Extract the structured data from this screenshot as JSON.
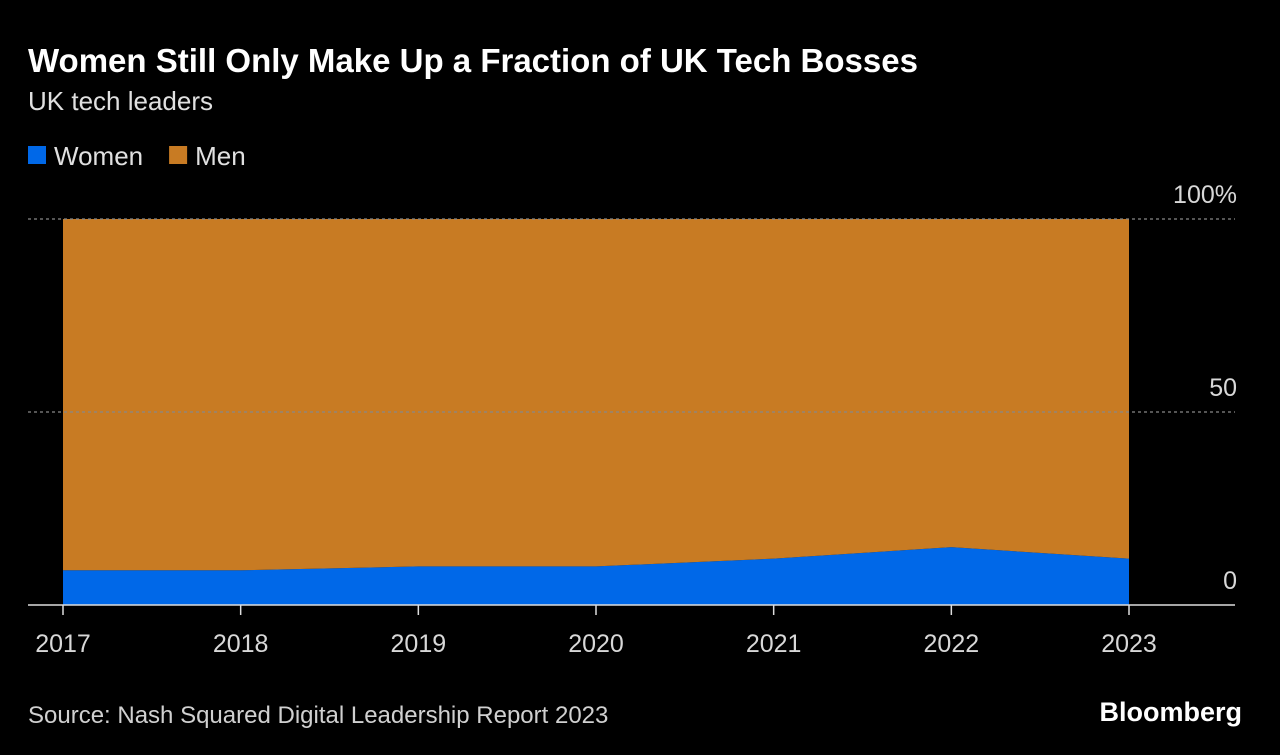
{
  "chart_data": {
    "type": "stacked-area",
    "title": "Women Still Only Make Up a Fraction of UK Tech Bosses",
    "subtitle": "UK tech leaders",
    "categories": [
      "2017",
      "2018",
      "2019",
      "2020",
      "2021",
      "2022",
      "2023"
    ],
    "series": [
      {
        "name": "Women",
        "color": "#0068e8",
        "values": [
          9,
          9,
          10,
          10,
          12,
          15,
          12
        ]
      },
      {
        "name": "Men",
        "color": "#c87b23",
        "values": [
          91,
          91,
          90,
          90,
          88,
          85,
          88
        ]
      }
    ],
    "ylim": [
      0,
      100
    ],
    "yticks": [
      0,
      50,
      {
        "value": 100,
        "label": "100%"
      }
    ],
    "grid": true,
    "source": "Source: Nash Squared Digital Leadership Report 2023",
    "brand": "Bloomberg"
  }
}
